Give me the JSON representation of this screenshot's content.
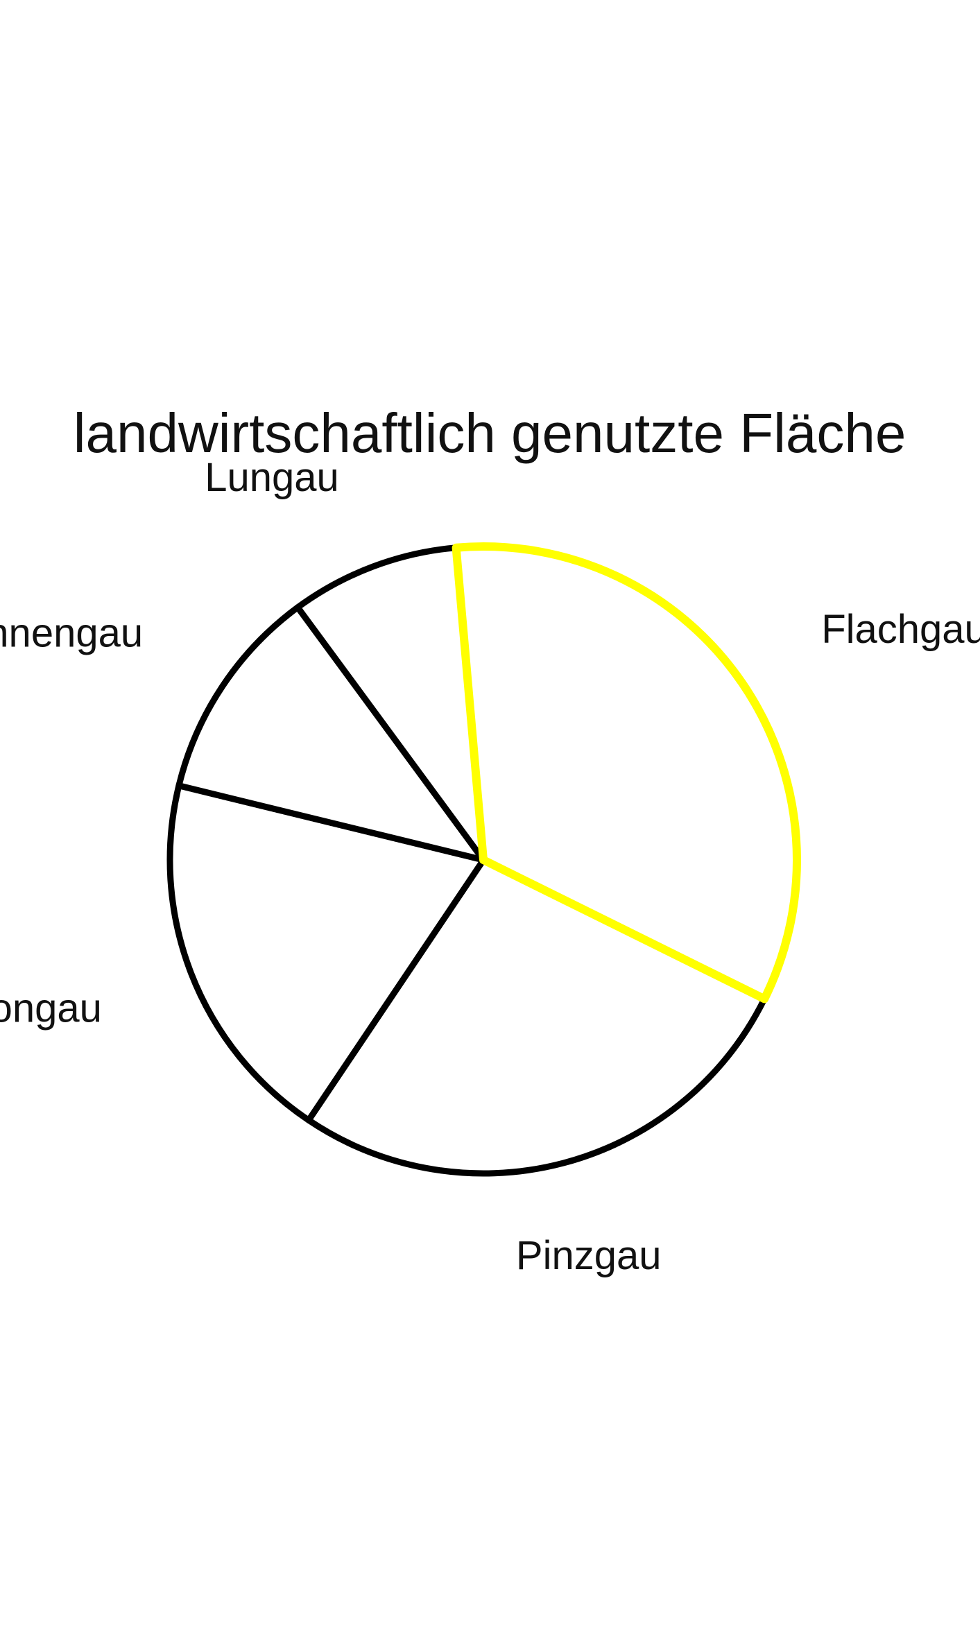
{
  "chart_data": {
    "type": "pie",
    "title": "landwirtschaftlich genutzte Fläche",
    "slices": [
      {
        "label": "Flachgau",
        "value": 33.7,
        "outline_color": "#ffff00"
      },
      {
        "label": "Pinzgau",
        "value": 27.1,
        "outline_color": "#000000"
      },
      {
        "label": "Pongau",
        "value": 19.4,
        "outline_color": "#000000"
      },
      {
        "label": "Tennengau",
        "value": 11.1,
        "outline_color": "#000000"
      },
      {
        "label": "Lungau",
        "value": 8.7,
        "outline_color": "#000000"
      }
    ],
    "fill_color": "#ffffff",
    "legend": "none"
  }
}
